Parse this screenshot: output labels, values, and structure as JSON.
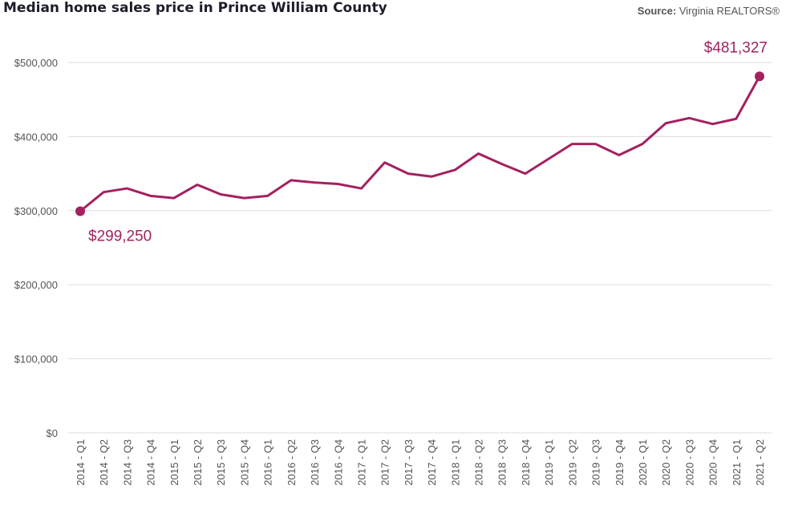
{
  "header": {
    "title": "Median home sales price in Prince William County",
    "source_label": "Source:",
    "source_value": "Virginia REALTORS®"
  },
  "colors": {
    "line": "#a3215f",
    "grid": "#dddddd",
    "tick_text": "#555555"
  },
  "chart_data": {
    "type": "line",
    "title": "Median home sales price in Prince William County",
    "xlabel": "",
    "ylabel": "",
    "ylim": [
      0,
      500000
    ],
    "y_ticks": [
      0,
      100000,
      200000,
      300000,
      400000,
      500000
    ],
    "y_tick_labels": [
      "$0",
      "$100,000",
      "$200,000",
      "$300,000",
      "$400,000",
      "$500,000"
    ],
    "grid": true,
    "categories": [
      "2014 - Q1",
      "2014 - Q2",
      "2014 - Q3",
      "2014 - Q4",
      "2015 - Q1",
      "2015 - Q2",
      "2015 - Q3",
      "2015 - Q4",
      "2016 - Q1",
      "2016 - Q2",
      "2016 - Q3",
      "2016 - Q4",
      "2017 - Q1",
      "2017 - Q2",
      "2017 - Q3",
      "2017 - Q4",
      "2018 - Q1",
      "2018 - Q2",
      "2018 - Q3",
      "2018 - Q4",
      "2019 - Q1",
      "2019 - Q2",
      "2019 - Q3",
      "2019 - Q4",
      "2020 - Q1",
      "2020 - Q2",
      "2020 - Q3",
      "2020 - Q4",
      "2021 - Q1",
      "2021 - Q2"
    ],
    "values": [
      299250,
      325000,
      330000,
      320000,
      317000,
      335000,
      322000,
      317000,
      320000,
      341000,
      338000,
      336000,
      330000,
      365000,
      350000,
      346000,
      355000,
      377000,
      363000,
      350000,
      370000,
      390000,
      390000,
      375000,
      390000,
      418000,
      425000,
      417000,
      424000,
      481327
    ],
    "annotations": [
      {
        "index": 0,
        "text": "$299,250"
      },
      {
        "index": 29,
        "text": "$481,327"
      }
    ]
  }
}
